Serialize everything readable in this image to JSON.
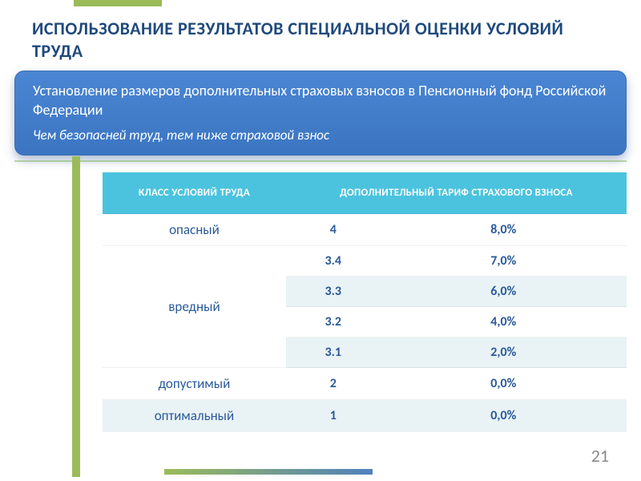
{
  "slide": {
    "title": "ИСПОЛЬЗОВАНИЕ РЕЗУЛЬТАТОВ СПЕЦИАЛЬНОЙ ОЦЕНКИ УСЛОВИЙ ТРУДА",
    "callout": {
      "line1": "Установление размеров дополнительных страховых взносов в Пенсионный фонд Российской Федерации",
      "line2": "Чем безопасней труд, тем ниже страховой взнос"
    },
    "page_number": "21",
    "colors": {
      "title": "#1f497d",
      "callout_bg_top": "#4a86d3",
      "callout_bg_bottom": "#3b75c2",
      "accent_green": "#9bbb59",
      "header_bg": "#4bc3de",
      "row_alt_bg": "#e9f2f5",
      "cell_text": "#2a5a9a",
      "pageno": "#8a8a8a"
    }
  },
  "table": {
    "type": "table",
    "columns": [
      "КЛАСС УСЛОВИЙ ТРУДА",
      "ДОПОЛНИТЕЛЬНЫЙ ТАРИФ СТРАХОВОГО ВЗНОСА"
    ],
    "rows": [
      {
        "class": "опасный",
        "subclass": "4",
        "rate": "8,0%",
        "alt": false,
        "first_of_group": true,
        "rowspan": 1
      },
      {
        "class": "вредный",
        "subclass": "3.4",
        "rate": "7,0%",
        "alt": false,
        "first_of_group": true,
        "rowspan": 4
      },
      {
        "class": "",
        "subclass": "3.3",
        "rate": "6,0%",
        "alt": true,
        "first_of_group": false,
        "rowspan": 0
      },
      {
        "class": "",
        "subclass": "3.2",
        "rate": "4,0%",
        "alt": false,
        "first_of_group": false,
        "rowspan": 0
      },
      {
        "class": "",
        "subclass": "3.1",
        "rate": "2,0%",
        "alt": true,
        "first_of_group": false,
        "rowspan": 0
      },
      {
        "class": "допустимый",
        "subclass": "2",
        "rate": "0,0%",
        "alt": false,
        "first_of_group": true,
        "rowspan": 1
      },
      {
        "class": "оптимальный",
        "subclass": "1",
        "rate": "0,0%",
        "alt": true,
        "first_of_group": true,
        "rowspan": 1
      }
    ],
    "col_widths": [
      "35%",
      "18%",
      "47%"
    ]
  }
}
